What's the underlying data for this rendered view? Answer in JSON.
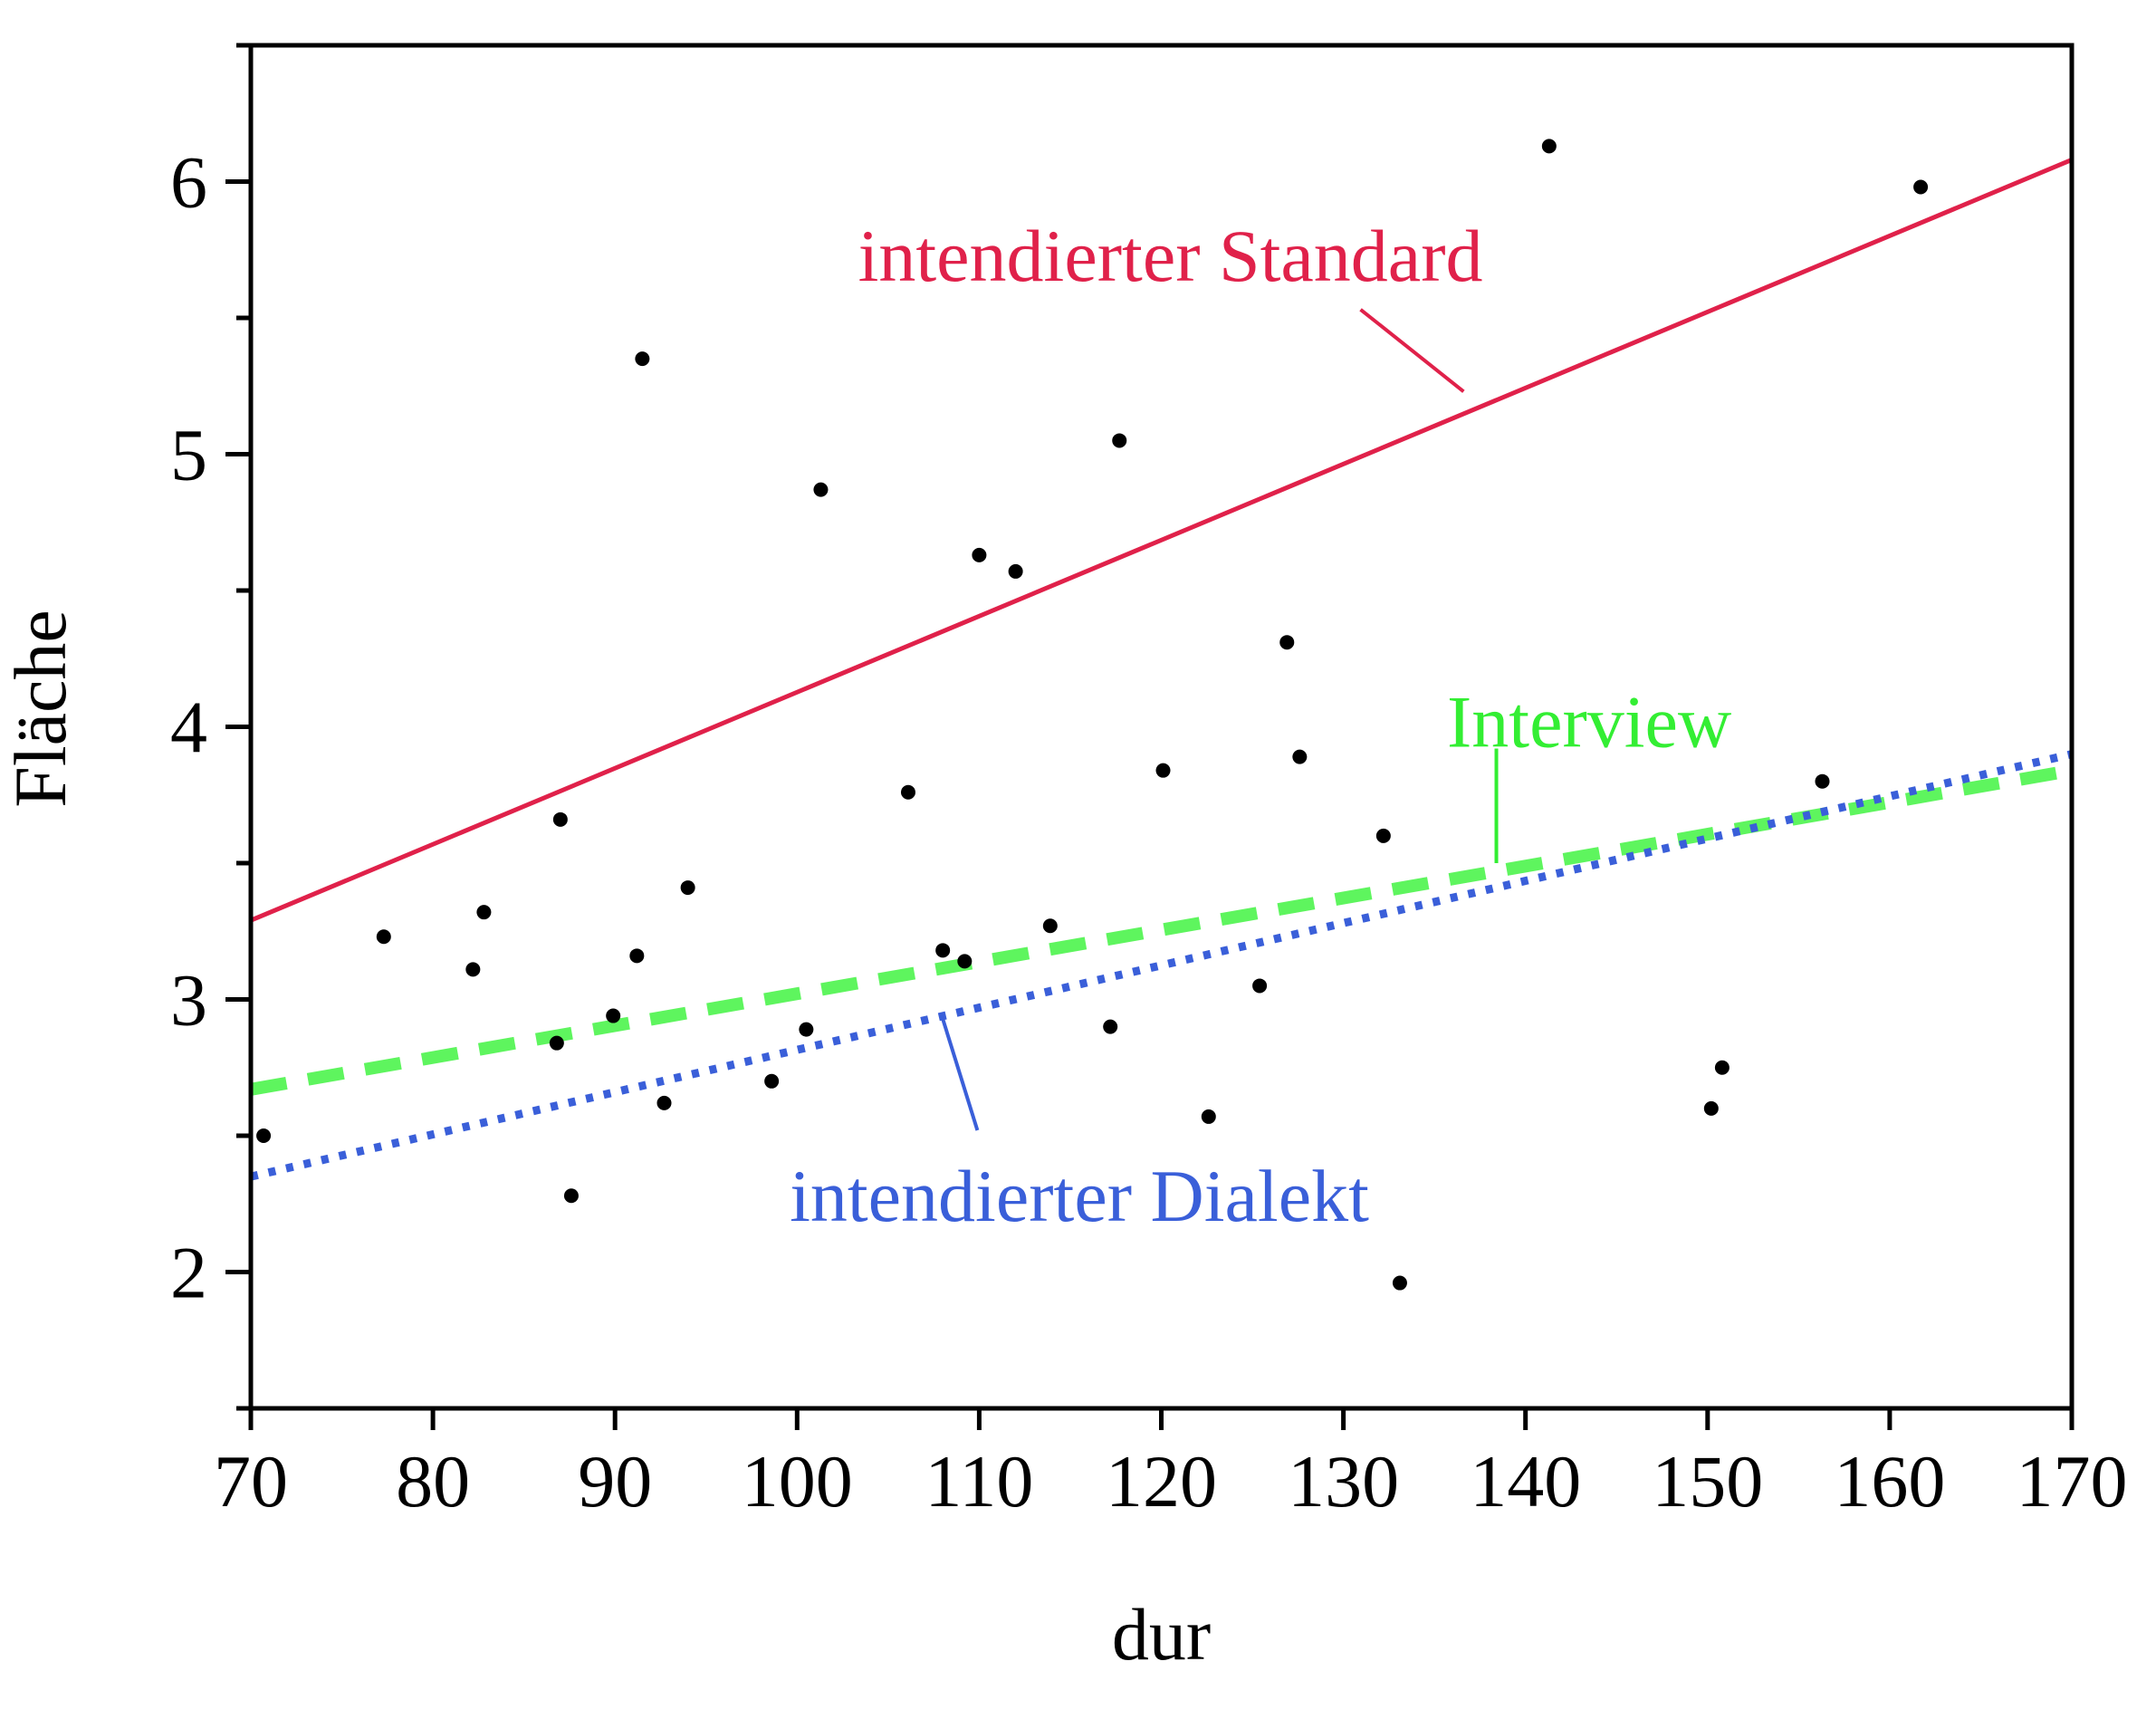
{
  "chart_data": {
    "type": "scatter",
    "xlabel": "dur",
    "ylabel": "Fläche",
    "xlim": [
      70,
      170
    ],
    "ylim": [
      1.5,
      6.5
    ],
    "xticks": [
      70,
      80,
      90,
      100,
      110,
      120,
      130,
      140,
      150,
      160,
      170
    ],
    "yticks_major": [
      2,
      3,
      4,
      5,
      6
    ],
    "yticks_minor": [
      1.5,
      2.5,
      3.5,
      4.5,
      5.5,
      6.5
    ],
    "xtick_labels": [
      "70",
      "80",
      "90",
      "100",
      "110",
      "120",
      "130",
      "140",
      "150",
      "160",
      "170"
    ],
    "ytick_labels": [
      "2",
      "3",
      "4",
      "5",
      "6"
    ],
    "grid": false,
    "points": {
      "color": "#000000",
      "x": [
        70.7,
        77.3,
        82.2,
        82.8,
        86.8,
        87.0,
        87.6,
        89.9,
        91.2,
        91.5,
        92.7,
        94.0,
        98.6,
        100.5,
        101.3,
        106.1,
        108.0,
        109.2,
        110.0,
        112.0,
        113.9,
        117.2,
        117.7,
        120.1,
        122.6,
        125.4,
        126.9,
        127.6,
        132.2,
        133.1,
        141.3,
        150.2,
        150.8,
        156.3,
        161.7
      ],
      "y": [
        2.5,
        3.23,
        3.11,
        3.32,
        2.84,
        3.66,
        2.28,
        2.94,
        3.16,
        5.35,
        2.62,
        3.41,
        2.7,
        2.89,
        4.87,
        3.76,
        3.18,
        3.14,
        4.63,
        4.57,
        3.27,
        2.9,
        5.05,
        3.84,
        2.57,
        3.05,
        4.31,
        3.89,
        3.6,
        1.96,
        6.13,
        2.6,
        2.75,
        3.8,
        5.98
      ]
    },
    "series": [
      {
        "name": "intendierter Standard",
        "type": "line",
        "style": "solid",
        "color": "#e0214a",
        "x": [
          70,
          170
        ],
        "y": [
          3.29,
          6.08
        ],
        "label_color": "#e0214a",
        "label_anchor": [
          120.5,
          5.73
        ],
        "label_point": [
          136.6,
          5.23
        ]
      },
      {
        "name": "Interview",
        "type": "line",
        "style": "dashed",
        "color": "#5ef55e",
        "x": [
          70,
          170
        ],
        "y": [
          2.67,
          3.84
        ],
        "label_color": "#33ee33",
        "label_anchor": [
          143.5,
          4.02
        ],
        "label_point": [
          138.4,
          3.5
        ]
      },
      {
        "name": "intendierter Dialekt",
        "type": "line",
        "style": "dotted",
        "color": "#3a5fd9",
        "x": [
          70,
          170
        ],
        "y": [
          2.35,
          3.9
        ],
        "label_color": "#3a5fd9",
        "label_anchor": [
          115.5,
          2.28
        ],
        "label_point": [
          107.9,
          2.95
        ]
      }
    ]
  }
}
